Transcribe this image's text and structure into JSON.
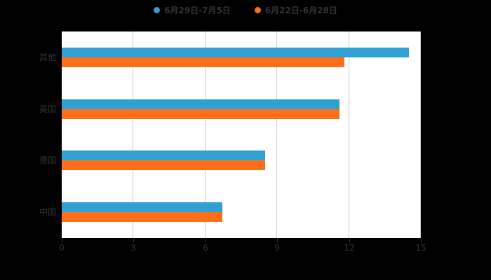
{
  "legend": {
    "items": [
      {
        "label": "6月29日-7月5日",
        "color": "#2f9fd4"
      },
      {
        "label": "6月22日-6月28日",
        "color": "#ff6f1a"
      }
    ]
  },
  "chart_data": {
    "type": "bar",
    "orientation": "horizontal",
    "title": "",
    "categories": [
      "其他",
      "英国",
      "德国",
      "中国"
    ],
    "series": [
      {
        "name": "6月29日-7月5日",
        "color": "#2f9fd4",
        "values": [
          14.5,
          11.6,
          8.5,
          6.7
        ]
      },
      {
        "name": "6月22日-6月28日",
        "color": "#ff6f1a",
        "values": [
          11.8,
          11.6,
          8.5,
          6.7
        ]
      }
    ],
    "xlim": [
      0,
      15
    ],
    "xticks": [
      0,
      3,
      6,
      9,
      12,
      15
    ],
    "grid": true,
    "legend_position": "top"
  },
  "colors": {
    "background": "#000000",
    "plot_background": "#ffffff",
    "gridline": "#cccccc",
    "axis": "#000000",
    "text": "#333333"
  }
}
